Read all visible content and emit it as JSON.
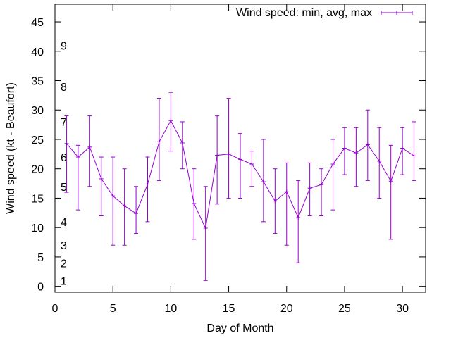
{
  "chart_data": {
    "type": "line",
    "xlabel": "Day of Month",
    "ylabel": "Wind speed (kt - Beaufort)",
    "xlim": [
      0,
      32
    ],
    "ylim": [
      -1,
      48
    ],
    "x_ticks": [
      0,
      5,
      10,
      15,
      20,
      25,
      30
    ],
    "y_ticks": [
      0,
      5,
      10,
      15,
      20,
      25,
      30,
      35,
      40,
      45
    ],
    "beaufort_labels": [
      {
        "label": "1",
        "y": 1
      },
      {
        "label": "2",
        "y": 4
      },
      {
        "label": "3",
        "y": 7
      },
      {
        "label": "4",
        "y": 11
      },
      {
        "label": "5",
        "y": 17
      },
      {
        "label": "6",
        "y": 22
      },
      {
        "label": "7",
        "y": 28
      },
      {
        "label": "8",
        "y": 34
      },
      {
        "label": "9",
        "y": 41
      }
    ],
    "legend_position": "top-right",
    "grid": false,
    "series": [
      {
        "name": "Wind speed: min, avg, max",
        "color": "#9400d3",
        "x": [
          1,
          2,
          3,
          4,
          5,
          6,
          7,
          8,
          9,
          10,
          11,
          12,
          13,
          14,
          15,
          16,
          17,
          18,
          19,
          20,
          21,
          22,
          23,
          24,
          25,
          26,
          27,
          28,
          29,
          30,
          31
        ],
        "avg": [
          24.3,
          22,
          23.7,
          18.3,
          15.4,
          13.7,
          12.4,
          17.4,
          24.6,
          28.2,
          24.4,
          14.1,
          9.9,
          22.3,
          22.5,
          21.6,
          20.8,
          17.8,
          14.5,
          16.1,
          11.7,
          16.7,
          17.3,
          20.8,
          23.5,
          22.7,
          24.1,
          21.3,
          17.9,
          23.5,
          22.2
        ],
        "min": [
          16,
          13,
          17,
          12,
          7,
          7,
          9,
          11,
          18,
          23,
          20,
          8,
          1,
          14,
          15,
          15,
          17,
          11,
          9,
          7,
          4,
          12,
          12,
          13,
          19,
          17,
          18,
          15,
          8,
          19,
          18
        ],
        "max": [
          29,
          24,
          29,
          22,
          22,
          20,
          17,
          22,
          32,
          33,
          28,
          20,
          17,
          29,
          32,
          26,
          23,
          25,
          20,
          21,
          18,
          21,
          20,
          25,
          27,
          27,
          30,
          27,
          24,
          27,
          28
        ]
      }
    ]
  }
}
